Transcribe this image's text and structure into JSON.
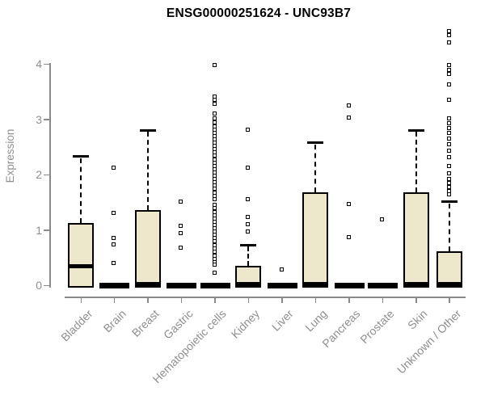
{
  "chart_data": {
    "type": "boxplot",
    "title": "ENSG00000251624 - UNC93B7",
    "ylabel": "Expression",
    "xlabel": "",
    "ylim": [
      0,
      4.7
    ],
    "yticks": [
      0,
      1,
      2,
      3,
      4
    ],
    "grid": false,
    "legend": false,
    "colors": {
      "box_fill": "#EDE7CB",
      "box_border": "#000000",
      "axis": "#8A8A8A",
      "labels": "#8F8F8F",
      "title": "#000000"
    },
    "categories": [
      "Bladder",
      "Brain",
      "Breast",
      "Gastric",
      "Hematopoietic cells",
      "Kidney",
      "Liver",
      "Lung",
      "Pancreas",
      "Prostate",
      "Skin",
      "Unknown / Other"
    ],
    "boxes": [
      {
        "category": "Bladder",
        "q1": 0,
        "median": 0.34,
        "q3": 1.12,
        "whisker_low": 0,
        "whisker_high": 2.33,
        "outliers": []
      },
      {
        "category": "Brain",
        "q1": 0,
        "median": 0,
        "q3": 0,
        "whisker_low": 0,
        "whisker_high": 0,
        "outliers": [
          2.12,
          1.31,
          0.85,
          0.74,
          0.4
        ]
      },
      {
        "category": "Breast",
        "q1": 0,
        "median": 0.02,
        "q3": 1.36,
        "whisker_low": 0,
        "whisker_high": 2.8,
        "outliers": []
      },
      {
        "category": "Gastric",
        "q1": 0,
        "median": 0,
        "q3": 0,
        "whisker_low": 0,
        "whisker_high": 0,
        "outliers": [
          1.51,
          1.07,
          0.95,
          0.68
        ]
      },
      {
        "category": "Hematopoietic cells",
        "q1": 0,
        "median": 0,
        "q3": 0,
        "whisker_low": 0,
        "whisker_high": 0,
        "outliers": [
          3.98,
          3.42,
          3.35,
          3.28,
          3.1,
          3.02,
          2.95,
          2.88,
          2.82,
          2.76,
          2.7,
          2.64,
          2.58,
          2.52,
          2.46,
          2.4,
          2.34,
          2.28,
          2.22,
          2.16,
          2.1,
          2.04,
          1.98,
          1.92,
          1.86,
          1.8,
          1.74,
          1.68,
          1.62,
          1.56,
          1.45,
          1.39,
          1.33,
          1.27,
          1.21,
          1.15,
          1.09,
          1.03,
          0.97,
          0.91,
          0.85,
          0.79,
          0.73,
          0.67,
          0.6,
          0.54,
          0.48,
          0.42,
          0.38,
          0.22
        ]
      },
      {
        "category": "Kidney",
        "q1": 0,
        "median": 0.02,
        "q3": 0.35,
        "whisker_low": 0,
        "whisker_high": 0.73,
        "outliers": [
          2.82,
          2.12,
          1.56,
          1.24,
          1.1,
          0.97
        ]
      },
      {
        "category": "Liver",
        "q1": 0,
        "median": 0,
        "q3": 0,
        "whisker_low": 0,
        "whisker_high": 0,
        "outliers": [
          0.28
        ]
      },
      {
        "category": "Lung",
        "q1": 0,
        "median": 0.02,
        "q3": 1.68,
        "whisker_low": 0,
        "whisker_high": 2.58,
        "outliers": []
      },
      {
        "category": "Pancreas",
        "q1": 0,
        "median": 0,
        "q3": 0,
        "whisker_low": 0,
        "whisker_high": 0,
        "outliers": [
          3.26,
          3.03,
          1.47,
          0.87
        ]
      },
      {
        "category": "Prostate",
        "q1": 0,
        "median": 0,
        "q3": 0,
        "whisker_low": 0,
        "whisker_high": 0,
        "outliers": [
          1.19
        ]
      },
      {
        "category": "Skin",
        "q1": 0,
        "median": 0.02,
        "q3": 1.68,
        "whisker_low": 0,
        "whisker_high": 2.8,
        "outliers": []
      },
      {
        "category": "Unknown / Other",
        "q1": 0,
        "median": 0.02,
        "q3": 0.62,
        "whisker_low": 0,
        "whisker_high": 1.51,
        "outliers": [
          4.6,
          4.52,
          4.4,
          3.99,
          3.9,
          3.82,
          3.63,
          3.36,
          3.02,
          2.93,
          2.84,
          2.75,
          2.65,
          2.55,
          2.43,
          2.31,
          2.16,
          2.02,
          1.92,
          1.85,
          1.78,
          1.71,
          1.65
        ]
      }
    ]
  }
}
